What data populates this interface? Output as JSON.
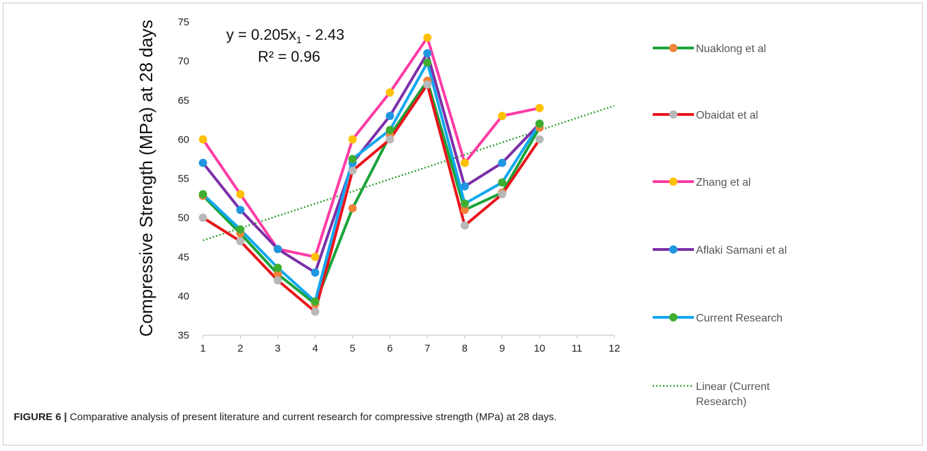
{
  "figure": {
    "label": "FIGURE 6 |",
    "caption": "Comparative analysis of present literature and current research for compressive strength (MPa) at 28 days."
  },
  "chart_data": {
    "type": "line",
    "ylabel": "Compressive Strength (MPa) at 28 days",
    "xlabel": "",
    "x_ticks": [
      "1",
      "2",
      "3",
      "4",
      "5",
      "6",
      "7",
      "8",
      "9",
      "10",
      "11",
      "12"
    ],
    "xlim": [
      1,
      12
    ],
    "ylim": [
      35,
      75
    ],
    "y_ticks": [
      35,
      40,
      45,
      50,
      55,
      60,
      65,
      70,
      75
    ],
    "grid": false,
    "legend_position": "right",
    "annotation": {
      "line1_prefix": "y = 0.205x",
      "line1_sub": "1",
      "line1_suffix": " - 2.43",
      "line2": "R² = 0.96"
    },
    "x": [
      1,
      2,
      3,
      4,
      5,
      6,
      7,
      8,
      9,
      10
    ],
    "series": [
      {
        "name": "Nuaklong et al",
        "color": "#1aa33a",
        "marker": "#f0823a",
        "values": [
          52.8,
          48,
          42.8,
          39,
          51.2,
          60.5,
          67.5,
          51,
          53.2,
          61.5
        ]
      },
      {
        "name": "Obaidat et al",
        "color": "#e8141b",
        "marker": "#b8b8b8",
        "values": [
          50,
          47,
          42,
          38,
          56,
          60,
          67,
          49,
          53,
          60
        ]
      },
      {
        "name": "Zhang et al",
        "color": "#ff3ca4",
        "marker": "#ffc000",
        "values": [
          60,
          53,
          46,
          45,
          60,
          66,
          73,
          57,
          63,
          64
        ]
      },
      {
        "name": "Aflaki Samani et al",
        "color": "#7c2fa8",
        "marker": "#2196e0",
        "values": [
          57,
          51,
          46,
          43,
          57,
          63,
          71,
          54,
          57,
          62
        ]
      },
      {
        "name": "Current Research",
        "color": "#11a7ef",
        "marker": "#3fae30",
        "values": [
          53,
          48.5,
          43.6,
          39.3,
          57.5,
          61.2,
          69.8,
          51.8,
          54.5,
          62
        ]
      }
    ],
    "trendline": {
      "name": "Linear (Current Research)",
      "color": "#2f9e2f",
      "y_at_x1": 47.1,
      "y_at_x12": 64.3
    }
  }
}
